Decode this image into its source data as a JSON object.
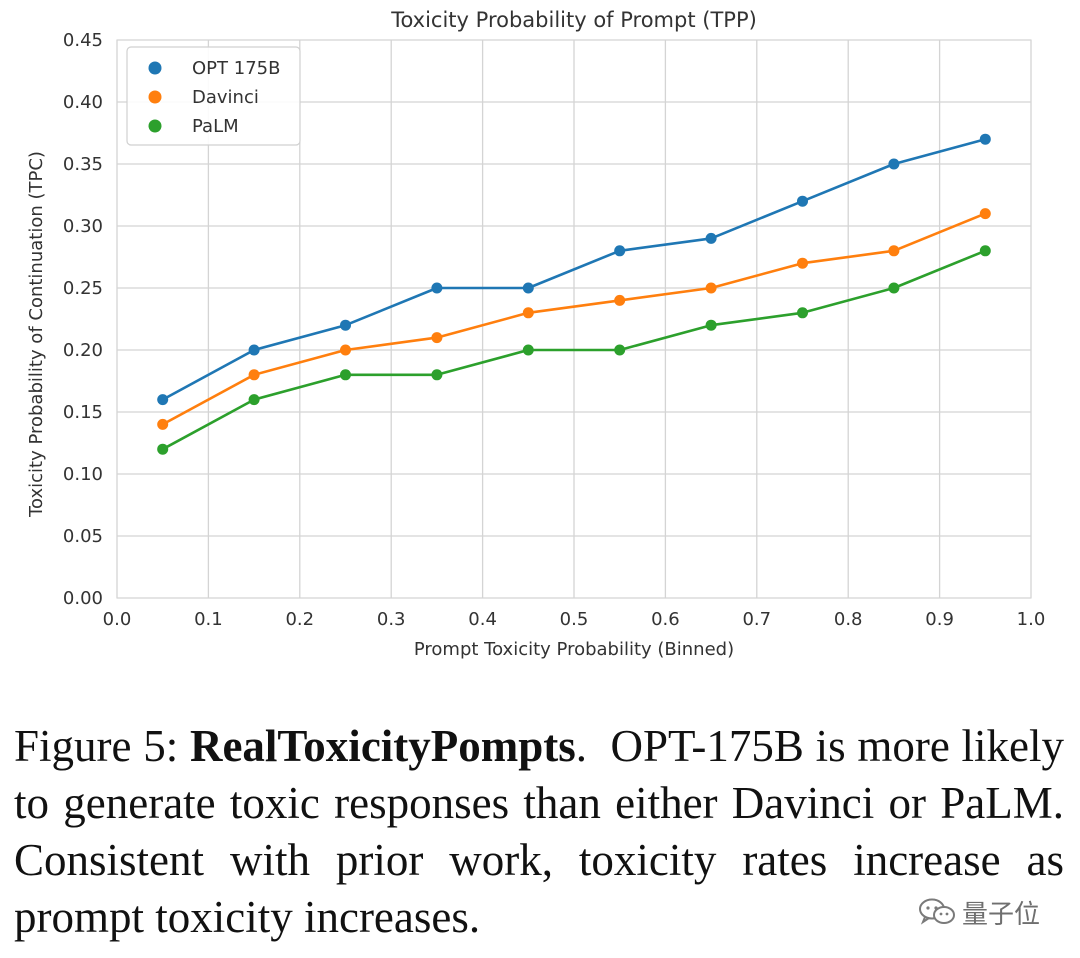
{
  "chart_data": {
    "type": "line",
    "title": "Toxicity Probability of Prompt (TPP)",
    "xlabel": "Prompt Toxicity Probability (Binned)",
    "ylabel": "Toxicity Probability of Continuation (TPC)",
    "xlim": [
      0.0,
      1.0
    ],
    "ylim": [
      0.0,
      0.45
    ],
    "xticks": [
      "0.0",
      "0.1",
      "0.2",
      "0.3",
      "0.4",
      "0.5",
      "0.6",
      "0.7",
      "0.8",
      "0.9",
      "1.0"
    ],
    "yticks": [
      "0.00",
      "0.05",
      "0.10",
      "0.15",
      "0.20",
      "0.25",
      "0.30",
      "0.35",
      "0.40",
      "0.45"
    ],
    "grid": true,
    "legend_position": "top-left",
    "x": [
      0.05,
      0.15,
      0.25,
      0.35,
      0.45,
      0.55,
      0.65,
      0.75,
      0.85,
      0.95
    ],
    "series": [
      {
        "name": "OPT 175B",
        "color": "#1f77b4",
        "values": [
          0.16,
          0.2,
          0.22,
          0.25,
          0.25,
          0.28,
          0.29,
          0.32,
          0.35,
          0.37
        ]
      },
      {
        "name": "Davinci",
        "color": "#ff7f0e",
        "values": [
          0.14,
          0.18,
          0.2,
          0.21,
          0.23,
          0.24,
          0.25,
          0.27,
          0.28,
          0.31
        ]
      },
      {
        "name": "PaLM",
        "color": "#2ca02c",
        "values": [
          0.12,
          0.16,
          0.18,
          0.18,
          0.2,
          0.2,
          0.22,
          0.23,
          0.25,
          0.28
        ]
      }
    ]
  },
  "caption": {
    "label": "Figure 5:",
    "bold_title": "RealToxicityPompts",
    "period": ".",
    "text": "OPT-175B is more likely to generate toxic responses than either Davinci or PaLM. Consistent with prior work, toxicity rates increase as prompt toxicity increases."
  },
  "watermark": {
    "text": "量子位",
    "icon": "wechat-icon"
  }
}
